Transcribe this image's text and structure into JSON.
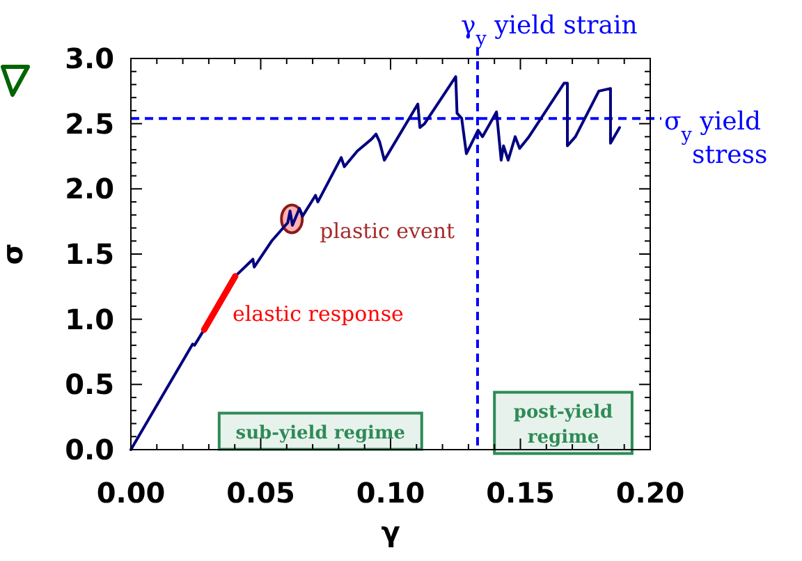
{
  "chart_data": {
    "type": "line",
    "xlabel": "γ",
    "ylabel": "σ",
    "xlim": [
      0,
      0.2
    ],
    "ylim": [
      0,
      3
    ],
    "xticks": [
      {
        "value": 0,
        "label": "0.00"
      },
      {
        "value": 0.01,
        "label": null
      },
      {
        "value": 0.02,
        "label": null
      },
      {
        "value": 0.03,
        "label": null
      },
      {
        "value": 0.04,
        "label": null
      },
      {
        "value": 0.05,
        "label": "0.05"
      },
      {
        "value": 0.06,
        "label": null
      },
      {
        "value": 0.07,
        "label": null
      },
      {
        "value": 0.08,
        "label": null
      },
      {
        "value": 0.09,
        "label": null
      },
      {
        "value": 0.1,
        "label": "0.10"
      },
      {
        "value": 0.11,
        "label": null
      },
      {
        "value": 0.12,
        "label": null
      },
      {
        "value": 0.13,
        "label": null
      },
      {
        "value": 0.14,
        "label": null
      },
      {
        "value": 0.15,
        "label": "0.15"
      },
      {
        "value": 0.16,
        "label": null
      },
      {
        "value": 0.17,
        "label": null
      },
      {
        "value": 0.18,
        "label": null
      },
      {
        "value": 0.19,
        "label": null
      },
      {
        "value": 0.2,
        "label": "0.20"
      }
    ],
    "yticks": [
      {
        "value": 0,
        "label": "0.0"
      },
      {
        "value": 0.1,
        "label": null
      },
      {
        "value": 0.2,
        "label": null
      },
      {
        "value": 0.3,
        "label": null
      },
      {
        "value": 0.4,
        "label": null
      },
      {
        "value": 0.5,
        "label": "0.5"
      },
      {
        "value": 0.6,
        "label": null
      },
      {
        "value": 0.7,
        "label": null
      },
      {
        "value": 0.8,
        "label": null
      },
      {
        "value": 0.9,
        "label": null
      },
      {
        "value": 1,
        "label": "1.0"
      },
      {
        "value": 1.1,
        "label": null
      },
      {
        "value": 1.2,
        "label": null
      },
      {
        "value": 1.3,
        "label": null
      },
      {
        "value": 1.4,
        "label": null
      },
      {
        "value": 1.5,
        "label": "1.5"
      },
      {
        "value": 1.6,
        "label": null
      },
      {
        "value": 1.7,
        "label": null
      },
      {
        "value": 1.8,
        "label": null
      },
      {
        "value": 1.9,
        "label": null
      },
      {
        "value": 2,
        "label": "2.0"
      },
      {
        "value": 2.1,
        "label": null
      },
      {
        "value": 2.2,
        "label": null
      },
      {
        "value": 2.3,
        "label": null
      },
      {
        "value": 2.4,
        "label": null
      },
      {
        "value": 2.5,
        "label": "2.5"
      },
      {
        "value": 2.6,
        "label": null
      },
      {
        "value": 2.7,
        "label": null
      },
      {
        "value": 2.8,
        "label": null
      },
      {
        "value": 2.9,
        "label": null
      },
      {
        "value": 3,
        "label": "3.0"
      }
    ],
    "grid": false,
    "marker": "none",
    "line_style": "solid",
    "series": [
      {
        "color": "#000080",
        "x": [
          0,
          0.0238,
          0.0245,
          0.0282,
          0.0402,
          0.047,
          0.0475,
          0.0542,
          0.0604,
          0.0613,
          0.0622,
          0.0649,
          0.0661,
          0.0711,
          0.072,
          0.081,
          0.0822,
          0.0872,
          0.0926,
          0.0944,
          0.0958,
          0.0976,
          0.1105,
          0.1113,
          0.1131,
          0.1251,
          0.1256,
          0.1274,
          0.1292,
          0.1337,
          0.1354,
          0.1408,
          0.1426,
          0.1435,
          0.1453,
          0.148,
          0.1497,
          0.1533,
          0.1668,
          0.1681,
          0.1681,
          0.1712,
          0.1802,
          0.1847,
          0.1847,
          0.1882
        ],
        "values": [
          0,
          0.81,
          0.8,
          0.92,
          1.33,
          1.46,
          1.4,
          1.6,
          1.74,
          1.83,
          1.72,
          1.85,
          1.79,
          1.95,
          1.9,
          2.24,
          2.17,
          2.29,
          2.38,
          2.42,
          2.36,
          2.22,
          2.65,
          2.47,
          2.5,
          2.86,
          2.58,
          2.54,
          2.27,
          2.45,
          2.4,
          2.59,
          2.22,
          2.33,
          2.22,
          2.4,
          2.31,
          2.4,
          2.81,
          2.81,
          2.33,
          2.4,
          2.75,
          2.77,
          2.35,
          2.47
        ]
      },
      {
        "color": "#ff0000",
        "x": [
          0.0282,
          0.0402
        ],
        "values": [
          0.92,
          1.33
        ]
      }
    ],
    "ref_lines": [
      {
        "axis": "x",
        "value": 0.1335,
        "label": "γ$_{y}$ yield strain",
        "color": "#0000ff",
        "line_style": "dashed"
      },
      {
        "axis": "y",
        "value": 2.54,
        "label": "σ$_{y}$ yield stress",
        "color": "#0000ff",
        "line_style": "dashed"
      }
    ],
    "annotations": [
      "elastic response",
      {
        "text": "plastic event",
        "x": 0.062,
        "y": 1.77
      },
      "sub-yield regime",
      "post-yield regime"
    ]
  }
}
